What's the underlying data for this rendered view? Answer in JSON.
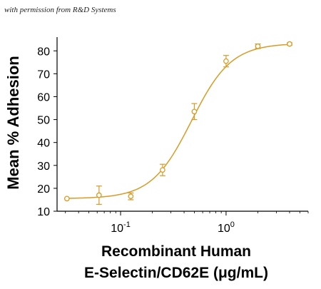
{
  "credit": "with permission from R&D Systems",
  "colors": {
    "series": "#D99B26",
    "axis": "#000000"
  },
  "chart_data": {
    "type": "scatter",
    "xscale": "log",
    "xlim": [
      0.025,
      6.0
    ],
    "ylim": [
      10,
      86
    ],
    "ylabel": "Mean % Adhesion",
    "xlabel_lines": [
      "Recombinant Human",
      "E-Selectin/CD62E (μg/mL)"
    ],
    "yticks": [
      10,
      20,
      30,
      40,
      50,
      60,
      70,
      80
    ],
    "xticks": [
      {
        "value": 0.1,
        "base": "10",
        "exp": "-1"
      },
      {
        "value": 1.0,
        "base": "10",
        "exp": "0"
      }
    ],
    "series": [
      {
        "points": [
          {
            "x": 0.031,
            "y": 15.5,
            "err": 0.0
          },
          {
            "x": 0.0625,
            "y": 17.0,
            "err": 4.0
          },
          {
            "x": 0.125,
            "y": 16.5,
            "err": 1.5
          },
          {
            "x": 0.25,
            "y": 28.0,
            "err": 2.5
          },
          {
            "x": 0.5,
            "y": 53.5,
            "err": 3.5
          },
          {
            "x": 1.0,
            "y": 75.5,
            "err": 2.5
          },
          {
            "x": 2.0,
            "y": 82.0,
            "err": 1.0
          },
          {
            "x": 4.0,
            "y": 83.0,
            "err": 0.5
          }
        ],
        "fit": {
          "bottom": 15.5,
          "top": 83.3,
          "ec50": 0.47,
          "hill": 2.3
        }
      }
    ]
  }
}
